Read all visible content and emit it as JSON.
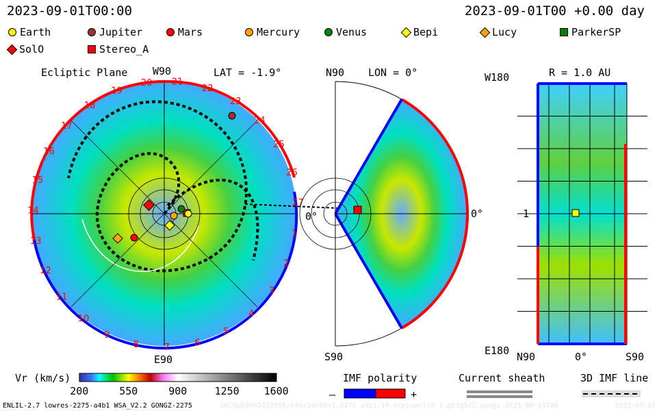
{
  "header": {
    "left_time": "2023-09-01T00:00",
    "right_time": "2023-09-01T00 +0.00 day"
  },
  "legend": [
    {
      "label": "Earth",
      "shape": "circle",
      "color": "#ffff00"
    },
    {
      "label": "Jupiter",
      "shape": "circle",
      "color": "#993333"
    },
    {
      "label": "Mars",
      "shape": "circle",
      "color": "#ff0000"
    },
    {
      "label": "Mercury",
      "shape": "circle",
      "color": "#ffa500"
    },
    {
      "label": "Venus",
      "shape": "circle",
      "color": "#008000"
    },
    {
      "label": "Bepi",
      "shape": "diamond",
      "color": "#ffff00"
    },
    {
      "label": "Lucy",
      "shape": "diamond",
      "color": "#ffa500"
    },
    {
      "label": "ParkerSP",
      "shape": "square",
      "color": "#008000"
    },
    {
      "label": "SolO",
      "shape": "diamond",
      "color": "#ff0000"
    },
    {
      "label": "Stereo_A",
      "shape": "square",
      "color": "#ff0000"
    }
  ],
  "ecliptic": {
    "title": "Ecliptic Plane",
    "top_label": "W90",
    "lat_label": "LAT = -1.9°",
    "bottom_label": "E90",
    "right_label": "0°",
    "rim_numbers": [
      "1",
      "2",
      "3",
      "4",
      "5",
      "6",
      "7",
      "8",
      "9",
      "10",
      "11",
      "12",
      "13",
      "14",
      "15",
      "16",
      "17",
      "18",
      "19",
      "20",
      "21",
      "22",
      "23",
      "24",
      "25",
      "26",
      "27"
    ]
  },
  "meridional": {
    "top_label": "N90",
    "lon_label": "LON = 0°",
    "bottom_label": "S90",
    "right_label": "0°"
  },
  "radial": {
    "r_label": "R = 1.0 AU",
    "top_label": "W180",
    "bottom_label": "E180",
    "mid_label": "1",
    "x_left": "N90",
    "x_mid": "0°",
    "x_right": "S90"
  },
  "colorbar": {
    "label": "Vr (km/s)",
    "ticks": [
      "200",
      "550",
      "900",
      "1250",
      "1600"
    ],
    "min": 200,
    "max": 1600
  },
  "imf_polarity": {
    "label": "IMF polarity",
    "minus": "–",
    "plus": "+",
    "negative_color": "#0000ff",
    "positive_color": "#ff0000"
  },
  "current_sheath": {
    "label": "Current sheath"
  },
  "imf_line": {
    "label": "3D IMF line"
  },
  "footer": {
    "model": "ENLIL-2.7 lowres-2275-a4b1 WSA_V2.2 GONGZ-2275",
    "run_id": "UNIQUE0902152655/640x30x90x1.2275-a4b1.16-mcp1umn1cd-1.g53q5d2.gongz-2023-09-01T00",
    "date": "2023-09-02"
  }
}
